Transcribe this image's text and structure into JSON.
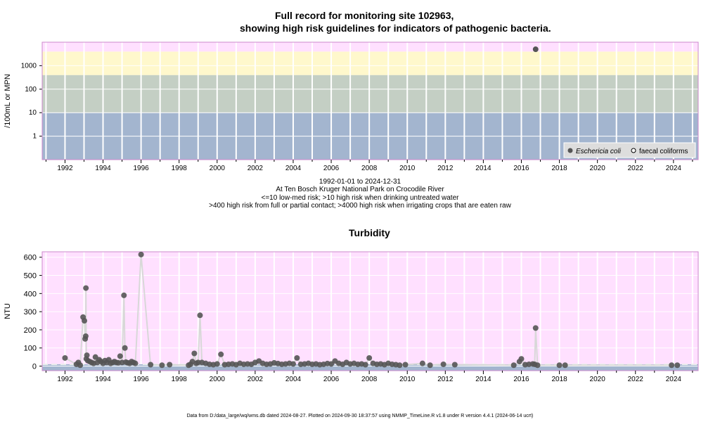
{
  "title_line1": "Full record for monitoring site 102963,",
  "title_line2": "showing high risk guidelines for indicators of pathogenic bacteria.",
  "subtitle_lines": [
    "1992-01-01 to 2024-12-31",
    "At Ten Bosch Kruger National Park on Crocodile River",
    "<=10 low-med risk; >10 high risk when drinking untreated water",
    ">400 high risk from full or partial contact; >4000 high risk when irrigating crops that are eaten raw"
  ],
  "footer": "Data from D:/data_large/wq/wms.db dated 2024-08-27. Plotted on 2024-09-30 18:37:57 using NMMP_TimeLine.R v1.8 under R version 4.4.1 (2024-06-14 ucrt)",
  "colors": {
    "band_low": "#a3b5cf",
    "band_med": "#c4cfc4",
    "band_high": "#fff8cc",
    "band_top": "#ffe0ff",
    "turb_bg": "#ffe0ff",
    "turb_bottom_band": "#a3b5cf",
    "point": "#555555",
    "connector": "#d8d8d8"
  },
  "chart_data": [
    {
      "type": "scatter",
      "title": "Full record for monitoring site 102963, showing high risk guidelines for indicators of pathogenic bacteria.",
      "ylabel": "/100mL or MPN",
      "y_scale": "log",
      "ylim": [
        0.1,
        10000
      ],
      "xlim": [
        1990.8,
        2025.3
      ],
      "y_ticks": [
        "1",
        "10",
        "100",
        "1000"
      ],
      "x_ticks": [
        "1992",
        "1994",
        "1996",
        "1998",
        "2000",
        "2002",
        "2004",
        "2006",
        "2008",
        "2010",
        "2012",
        "2014",
        "2016",
        "2018",
        "2020",
        "2022",
        "2024"
      ],
      "risk_bands": [
        10,
        400,
        4000
      ],
      "legend": {
        "position": "bottom-right",
        "entries": [
          "Eschericia coli",
          "faecal coliforms"
        ]
      },
      "series": [
        {
          "name": "Eschericia coli",
          "points": [
            [
              2016.75,
              5000
            ]
          ]
        },
        {
          "name": "faecal coliforms",
          "points": []
        }
      ]
    },
    {
      "type": "scatter",
      "title": "Turbidity",
      "ylabel": "NTU",
      "ylim": [
        -25,
        630
      ],
      "xlim": [
        1990.8,
        2025.3
      ],
      "y_ticks": [
        "0",
        "100",
        "200",
        "300",
        "400",
        "500",
        "600"
      ],
      "x_ticks": [
        "1992",
        "1994",
        "1996",
        "1998",
        "2000",
        "2002",
        "2004",
        "2006",
        "2008",
        "2010",
        "2012",
        "2014",
        "2016",
        "2018",
        "2020",
        "2022",
        "2024"
      ],
      "dashed_line_at": 10,
      "points": [
        [
          1992.0,
          45
        ],
        [
          1992.6,
          10
        ],
        [
          1992.7,
          20
        ],
        [
          1992.8,
          5
        ],
        [
          1992.95,
          270
        ],
        [
          1993.02,
          250
        ],
        [
          1993.06,
          150
        ],
        [
          1993.09,
          165
        ],
        [
          1993.1,
          430
        ],
        [
          1993.12,
          40
        ],
        [
          1993.15,
          60
        ],
        [
          1993.2,
          30
        ],
        [
          1993.3,
          25
        ],
        [
          1993.4,
          20
        ],
        [
          1993.5,
          15
        ],
        [
          1993.6,
          50
        ],
        [
          1993.7,
          20
        ],
        [
          1993.8,
          35
        ],
        [
          1993.9,
          25
        ],
        [
          1994.0,
          15
        ],
        [
          1994.1,
          30
        ],
        [
          1994.2,
          20
        ],
        [
          1994.3,
          35
        ],
        [
          1994.4,
          15
        ],
        [
          1994.5,
          20
        ],
        [
          1994.6,
          25
        ],
        [
          1994.7,
          20
        ],
        [
          1994.8,
          18
        ],
        [
          1994.9,
          55
        ],
        [
          1995.0,
          20
        ],
        [
          1995.1,
          390
        ],
        [
          1995.15,
          100
        ],
        [
          1995.2,
          22
        ],
        [
          1995.3,
          18
        ],
        [
          1995.4,
          15
        ],
        [
          1995.5,
          25
        ],
        [
          1995.6,
          20
        ],
        [
          1995.7,
          15
        ],
        [
          1996.0,
          615
        ],
        [
          1996.5,
          8
        ],
        [
          1997.1,
          5
        ],
        [
          1997.5,
          8
        ],
        [
          1998.5,
          5
        ],
        [
          1998.6,
          10
        ],
        [
          1998.7,
          25
        ],
        [
          1998.8,
          70
        ],
        [
          1998.9,
          15
        ],
        [
          1999.0,
          20
        ],
        [
          1999.1,
          280
        ],
        [
          1999.2,
          20
        ],
        [
          1999.4,
          15
        ],
        [
          1999.6,
          10
        ],
        [
          1999.8,
          8
        ],
        [
          2000.0,
          12
        ],
        [
          2000.2,
          65
        ],
        [
          2000.4,
          8
        ],
        [
          2000.6,
          10
        ],
        [
          2000.8,
          12
        ],
        [
          2001.0,
          8
        ],
        [
          2001.2,
          15
        ],
        [
          2001.4,
          10
        ],
        [
          2001.6,
          12
        ],
        [
          2001.8,
          10
        ],
        [
          2002.0,
          20
        ],
        [
          2002.2,
          28
        ],
        [
          2002.4,
          15
        ],
        [
          2002.6,
          10
        ],
        [
          2002.8,
          12
        ],
        [
          2003.0,
          18
        ],
        [
          2003.2,
          14
        ],
        [
          2003.4,
          10
        ],
        [
          2003.6,
          12
        ],
        [
          2003.8,
          15
        ],
        [
          2004.0,
          12
        ],
        [
          2004.2,
          45
        ],
        [
          2004.4,
          10
        ],
        [
          2004.6,
          12
        ],
        [
          2004.8,
          15
        ],
        [
          2005.0,
          10
        ],
        [
          2005.2,
          12
        ],
        [
          2005.4,
          8
        ],
        [
          2005.6,
          10
        ],
        [
          2005.8,
          14
        ],
        [
          2006.0,
          12
        ],
        [
          2006.2,
          28
        ],
        [
          2006.4,
          15
        ],
        [
          2006.6,
          10
        ],
        [
          2006.8,
          20
        ],
        [
          2007.0,
          12
        ],
        [
          2007.2,
          15
        ],
        [
          2007.4,
          10
        ],
        [
          2007.6,
          12
        ],
        [
          2007.8,
          8
        ],
        [
          2008.0,
          45
        ],
        [
          2008.2,
          15
        ],
        [
          2008.4,
          10
        ],
        [
          2008.6,
          12
        ],
        [
          2008.8,
          8
        ],
        [
          2009.0,
          15
        ],
        [
          2009.2,
          10
        ],
        [
          2009.4,
          8
        ],
        [
          2009.6,
          5
        ],
        [
          2009.9,
          8
        ],
        [
          2010.8,
          15
        ],
        [
          2011.2,
          5
        ],
        [
          2011.9,
          10
        ],
        [
          2012.5,
          8
        ],
        [
          2015.6,
          5
        ],
        [
          2015.9,
          25
        ],
        [
          2016.0,
          40
        ],
        [
          2016.2,
          8
        ],
        [
          2016.4,
          10
        ],
        [
          2016.6,
          12
        ],
        [
          2016.7,
          10
        ],
        [
          2016.75,
          210
        ],
        [
          2016.85,
          5
        ],
        [
          2018.0,
          5
        ],
        [
          2018.3,
          5
        ],
        [
          2023.9,
          5
        ],
        [
          2024.2,
          5
        ]
      ]
    }
  ]
}
